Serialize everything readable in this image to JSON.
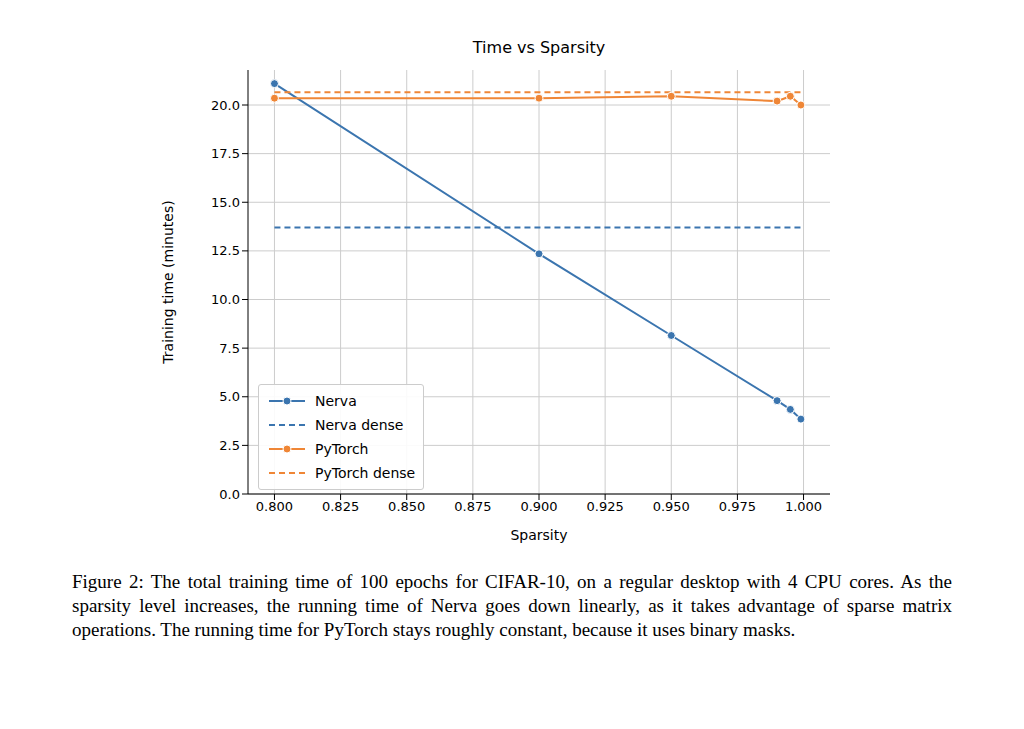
{
  "chart_data": {
    "type": "line",
    "title": "Time vs Sparsity",
    "x_label": "Sparsity",
    "y_label": "Training time (minutes)",
    "caption": "Figure 2: The total training time of 100 epochs for CIFAR-10, on a regular desktop with 4 CPU cores. As the sparsity level increases, the running time of Nerva goes down linearly, as it takes advantage of sparse matrix operations. The running time for PyTorch stays roughly constant, because it uses binary masks.",
    "x": [
      0.8,
      0.9,
      0.95,
      0.99,
      0.995,
      0.999
    ],
    "series": [
      {
        "name": "Nerva",
        "color": "#3b75af",
        "marker": "o",
        "line_style": "solid",
        "values": [
          21.1,
          12.35,
          8.15,
          4.8,
          4.35,
          3.85
        ]
      },
      {
        "name": "Nerva dense",
        "color": "#3b75af",
        "marker": "none",
        "line_style": "dashed",
        "values": [
          13.7,
          13.7,
          13.7,
          13.7,
          13.7,
          13.7
        ]
      },
      {
        "name": "PyTorch",
        "color": "#ef8636",
        "marker": "o",
        "line_style": "solid",
        "values": [
          20.35,
          20.35,
          20.45,
          20.2,
          20.45,
          20.0
        ]
      },
      {
        "name": "PyTorch dense",
        "color": "#ef8636",
        "marker": "none",
        "line_style": "dashed",
        "values": [
          20.65,
          20.65,
          20.65,
          20.65,
          20.65,
          20.65
        ]
      }
    ],
    "xlim": [
      0.79,
      1.01
    ],
    "xticks": [
      {
        "value": 0.8,
        "label": "0.800"
      },
      {
        "value": 0.825,
        "label": "0.825"
      },
      {
        "value": 0.85,
        "label": "0.850"
      },
      {
        "value": 0.875,
        "label": "0.875"
      },
      {
        "value": 0.9,
        "label": "0.900"
      },
      {
        "value": 0.925,
        "label": "0.925"
      },
      {
        "value": 0.95,
        "label": "0.950"
      },
      {
        "value": 0.975,
        "label": "0.975"
      },
      {
        "value": 1.0,
        "label": "1.000"
      }
    ],
    "ylim": [
      0,
      21.8
    ],
    "yticks": [
      {
        "value": 0,
        "label": "0.0"
      },
      {
        "value": 2.5,
        "label": "2.5"
      },
      {
        "value": 5,
        "label": "5.0"
      },
      {
        "value": 7.5,
        "label": "7.5"
      },
      {
        "value": 10,
        "label": "10.0"
      },
      {
        "value": 12.5,
        "label": "12.5"
      },
      {
        "value": 15,
        "label": "15.0"
      },
      {
        "value": 17.5,
        "label": "17.5"
      },
      {
        "value": 20,
        "label": "20.0"
      }
    ],
    "grid": true,
    "legend": "lower left"
  }
}
